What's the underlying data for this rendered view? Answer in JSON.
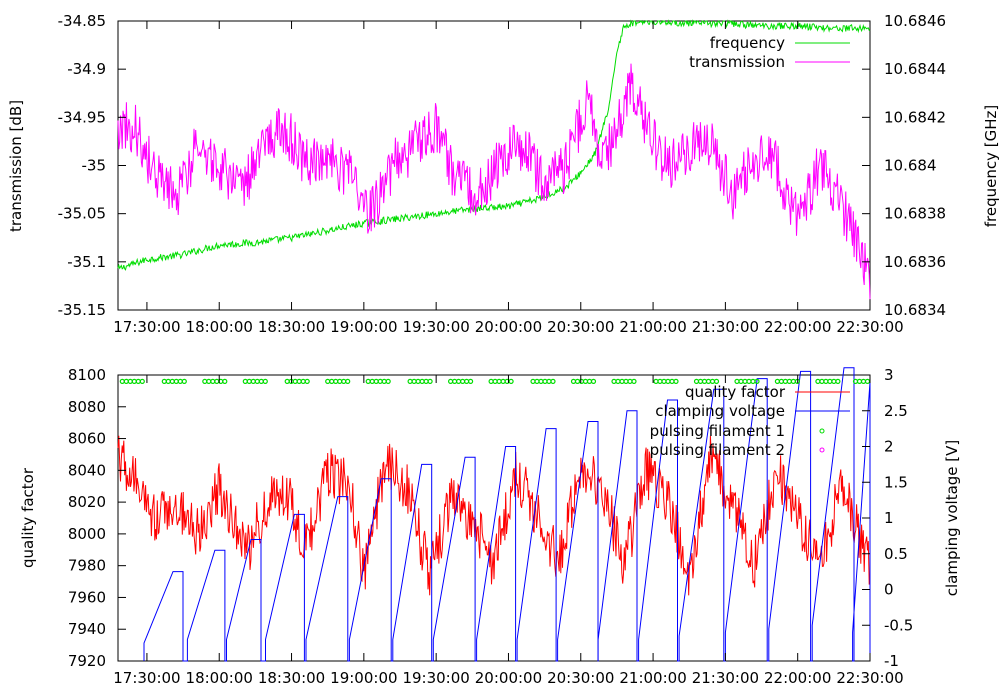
{
  "chart_data": [
    {
      "type": "line",
      "title": "",
      "xlabel": "",
      "ylabel": "transmission [dB]",
      "y2label": "frequency [GHz]",
      "x_tick_labels": [
        "17:30:00",
        "18:00:00",
        "18:30:00",
        "19:00:00",
        "19:30:00",
        "20:00:00",
        "20:30:00",
        "21:00:00",
        "21:30:00",
        "22:00:00",
        "22:30:00"
      ],
      "xlim_hours": [
        17.3,
        22.5
      ],
      "ylim": [
        -35.15,
        -34.85
      ],
      "y_tick_labels": [
        "-34.85",
        "-34.9",
        "-34.95",
        "-35",
        "-35.05",
        "-35.1",
        "-35.15"
      ],
      "y_ticks": [
        -34.85,
        -34.9,
        -34.95,
        -35.0,
        -35.05,
        -35.1,
        -35.15
      ],
      "y2lim": [
        10.6834,
        10.6846
      ],
      "y2_tick_labels": [
        "10.6846",
        "10.6844",
        "10.6842",
        "10.684",
        "10.6838",
        "10.6836",
        "10.6834"
      ],
      "y2_ticks": [
        10.6846,
        10.6844,
        10.6842,
        10.684,
        10.6838,
        10.6836,
        10.6834
      ],
      "legend_position": "top-right",
      "series": [
        {
          "name": "frequency",
          "axis": "y2",
          "color": "#00dd00",
          "x_hours": [
            17.3,
            17.5,
            17.75,
            18.0,
            18.25,
            18.5,
            18.75,
            19.0,
            19.25,
            19.5,
            19.75,
            20.0,
            20.2,
            20.4,
            20.5,
            20.6,
            20.7,
            20.75,
            20.8,
            20.9,
            21.0,
            21.25,
            21.5,
            21.75,
            22.0,
            22.25,
            22.5
          ],
          "values": [
            10.68357,
            10.68361,
            10.68363,
            10.68367,
            10.68368,
            10.6837,
            10.68373,
            10.68376,
            10.68378,
            10.6838,
            10.68382,
            10.68383,
            10.68386,
            10.68391,
            10.68397,
            10.68405,
            10.68425,
            10.68448,
            10.68458,
            10.6846,
            10.6846,
            10.68459,
            10.68459,
            10.68458,
            10.68458,
            10.68457,
            10.68457
          ]
        },
        {
          "name": "transmission",
          "axis": "y",
          "color": "#ff00ff",
          "x_hours": [
            17.3,
            17.42,
            17.55,
            17.7,
            17.85,
            18.0,
            18.15,
            18.3,
            18.45,
            18.6,
            18.75,
            18.9,
            19.05,
            19.2,
            19.35,
            19.5,
            19.65,
            19.8,
            19.95,
            20.1,
            20.25,
            20.4,
            20.55,
            20.65,
            20.75,
            20.85,
            20.95,
            21.1,
            21.25,
            21.4,
            21.55,
            21.7,
            21.85,
            22.0,
            22.15,
            22.3,
            22.5
          ],
          "values": [
            -34.96,
            -34.96,
            -35.01,
            -35.03,
            -34.98,
            -35.0,
            -35.03,
            -34.98,
            -34.96,
            -35.0,
            -34.99,
            -35.01,
            -35.05,
            -35.0,
            -34.98,
            -34.96,
            -35.02,
            -35.03,
            -34.99,
            -34.98,
            -35.02,
            -35.0,
            -34.93,
            -35.0,
            -34.96,
            -34.92,
            -34.96,
            -35.0,
            -34.98,
            -34.98,
            -35.03,
            -34.99,
            -35.0,
            -35.06,
            -35.0,
            -35.04,
            -35.12
          ]
        }
      ]
    },
    {
      "type": "line",
      "title": "",
      "xlabel": "",
      "ylabel": "quality factor",
      "y2label": "clamping voltage [V]",
      "x_tick_labels": [
        "17:30:00",
        "18:00:00",
        "18:30:00",
        "19:00:00",
        "19:30:00",
        "20:00:00",
        "20:30:00",
        "21:00:00",
        "21:30:00",
        "22:00:00",
        "22:30:00"
      ],
      "xlim_hours": [
        17.3,
        22.5
      ],
      "ylim": [
        7920,
        8100
      ],
      "y_tick_labels": [
        "8100",
        "8080",
        "8060",
        "8040",
        "8020",
        "8000",
        "7980",
        "7960",
        "7940",
        "7920"
      ],
      "y_ticks": [
        8100,
        8080,
        8060,
        8040,
        8020,
        8000,
        7980,
        7960,
        7940,
        7920
      ],
      "y2lim": [
        -1,
        3
      ],
      "y2_tick_labels": [
        "3",
        "2.5",
        "2",
        "1.5",
        "1",
        "0.5",
        "0",
        "-0.5",
        "-1"
      ],
      "y2_ticks": [
        3,
        2.5,
        2,
        1.5,
        1,
        0.5,
        0,
        -0.5,
        -1
      ],
      "legend_position": "top-right",
      "series": [
        {
          "name": "quality factor",
          "axis": "y",
          "color": "#ff0000",
          "x_hours": [
            17.3,
            17.4,
            17.55,
            17.7,
            17.85,
            18.0,
            18.1,
            18.2,
            18.35,
            18.5,
            18.6,
            18.75,
            18.9,
            19.0,
            19.15,
            19.3,
            19.45,
            19.6,
            19.75,
            19.9,
            20.05,
            20.2,
            20.35,
            20.5,
            20.65,
            20.8,
            20.95,
            21.1,
            21.25,
            21.4,
            21.55,
            21.7,
            21.85,
            22.0,
            22.15,
            22.3,
            22.5
          ],
          "values": [
            8050,
            8035,
            8010,
            8020,
            8000,
            8030,
            8010,
            7990,
            8025,
            8020,
            7990,
            8040,
            8030,
            7975,
            8045,
            8030,
            7975,
            8020,
            8010,
            7980,
            8040,
            8010,
            7985,
            8045,
            8030,
            7980,
            8040,
            8020,
            7975,
            8050,
            8020,
            7980,
            8040,
            8010,
            7980,
            8030,
            7980
          ]
        },
        {
          "name": "clamping voltage",
          "axis": "y2",
          "color": "#0000ff",
          "ramps": [
            {
              "start": 17.48,
              "end": 17.68,
              "v0": -0.75,
              "v1": 0.25
            },
            {
              "start": 17.78,
              "end": 17.97,
              "v0": -0.7,
              "v1": 0.55
            },
            {
              "start": 18.05,
              "end": 18.22,
              "v0": -0.7,
              "v1": 0.7
            },
            {
              "start": 18.32,
              "end": 18.52,
              "v0": -0.7,
              "v1": 1.05
            },
            {
              "start": 18.6,
              "end": 18.82,
              "v0": -0.7,
              "v1": 1.3
            },
            {
              "start": 18.9,
              "end": 19.12,
              "v0": -0.7,
              "v1": 1.55
            },
            {
              "start": 19.2,
              "end": 19.4,
              "v0": -0.7,
              "v1": 1.75
            },
            {
              "start": 19.48,
              "end": 19.7,
              "v0": -0.7,
              "v1": 1.85
            },
            {
              "start": 19.78,
              "end": 19.98,
              "v0": -0.7,
              "v1": 2.0
            },
            {
              "start": 20.06,
              "end": 20.26,
              "v0": -0.7,
              "v1": 2.25
            },
            {
              "start": 20.34,
              "end": 20.55,
              "v0": -0.7,
              "v1": 2.35
            },
            {
              "start": 20.62,
              "end": 20.82,
              "v0": -0.7,
              "v1": 2.5
            },
            {
              "start": 20.9,
              "end": 21.1,
              "v0": -0.7,
              "v1": 2.65
            },
            {
              "start": 21.18,
              "end": 21.42,
              "v0": -0.65,
              "v1": 2.8
            },
            {
              "start": 21.5,
              "end": 21.72,
              "v0": -0.6,
              "v1": 2.95
            },
            {
              "start": 21.8,
              "end": 22.02,
              "v0": -0.55,
              "v1": 3.05
            },
            {
              "start": 22.1,
              "end": 22.32,
              "v0": -0.5,
              "v1": 3.1
            },
            {
              "start": 22.38,
              "end": 22.5,
              "v0": -0.6,
              "v1": 2.9
            }
          ]
        },
        {
          "name": "pulsing filament 1",
          "axis": "y",
          "color": "#00dd00",
          "level": 8096,
          "segments": [
            [
              17.33,
              17.48
            ],
            [
              17.62,
              17.78
            ],
            [
              17.9,
              18.05
            ],
            [
              18.18,
              18.33
            ],
            [
              18.47,
              18.62
            ],
            [
              18.75,
              18.9
            ],
            [
              19.03,
              19.18
            ],
            [
              19.32,
              19.47
            ],
            [
              19.6,
              19.75
            ],
            [
              19.88,
              20.03
            ],
            [
              20.17,
              20.32
            ],
            [
              20.45,
              20.6
            ],
            [
              20.73,
              20.88
            ],
            [
              21.02,
              21.17
            ],
            [
              21.3,
              21.45
            ],
            [
              21.58,
              21.73
            ],
            [
              21.86,
              22.01
            ],
            [
              22.14,
              22.29
            ],
            [
              22.4,
              22.5
            ]
          ]
        },
        {
          "name": "pulsing filament 2",
          "axis": "y",
          "color": "#ff00ff",
          "level": 8096,
          "segments": []
        }
      ]
    }
  ]
}
